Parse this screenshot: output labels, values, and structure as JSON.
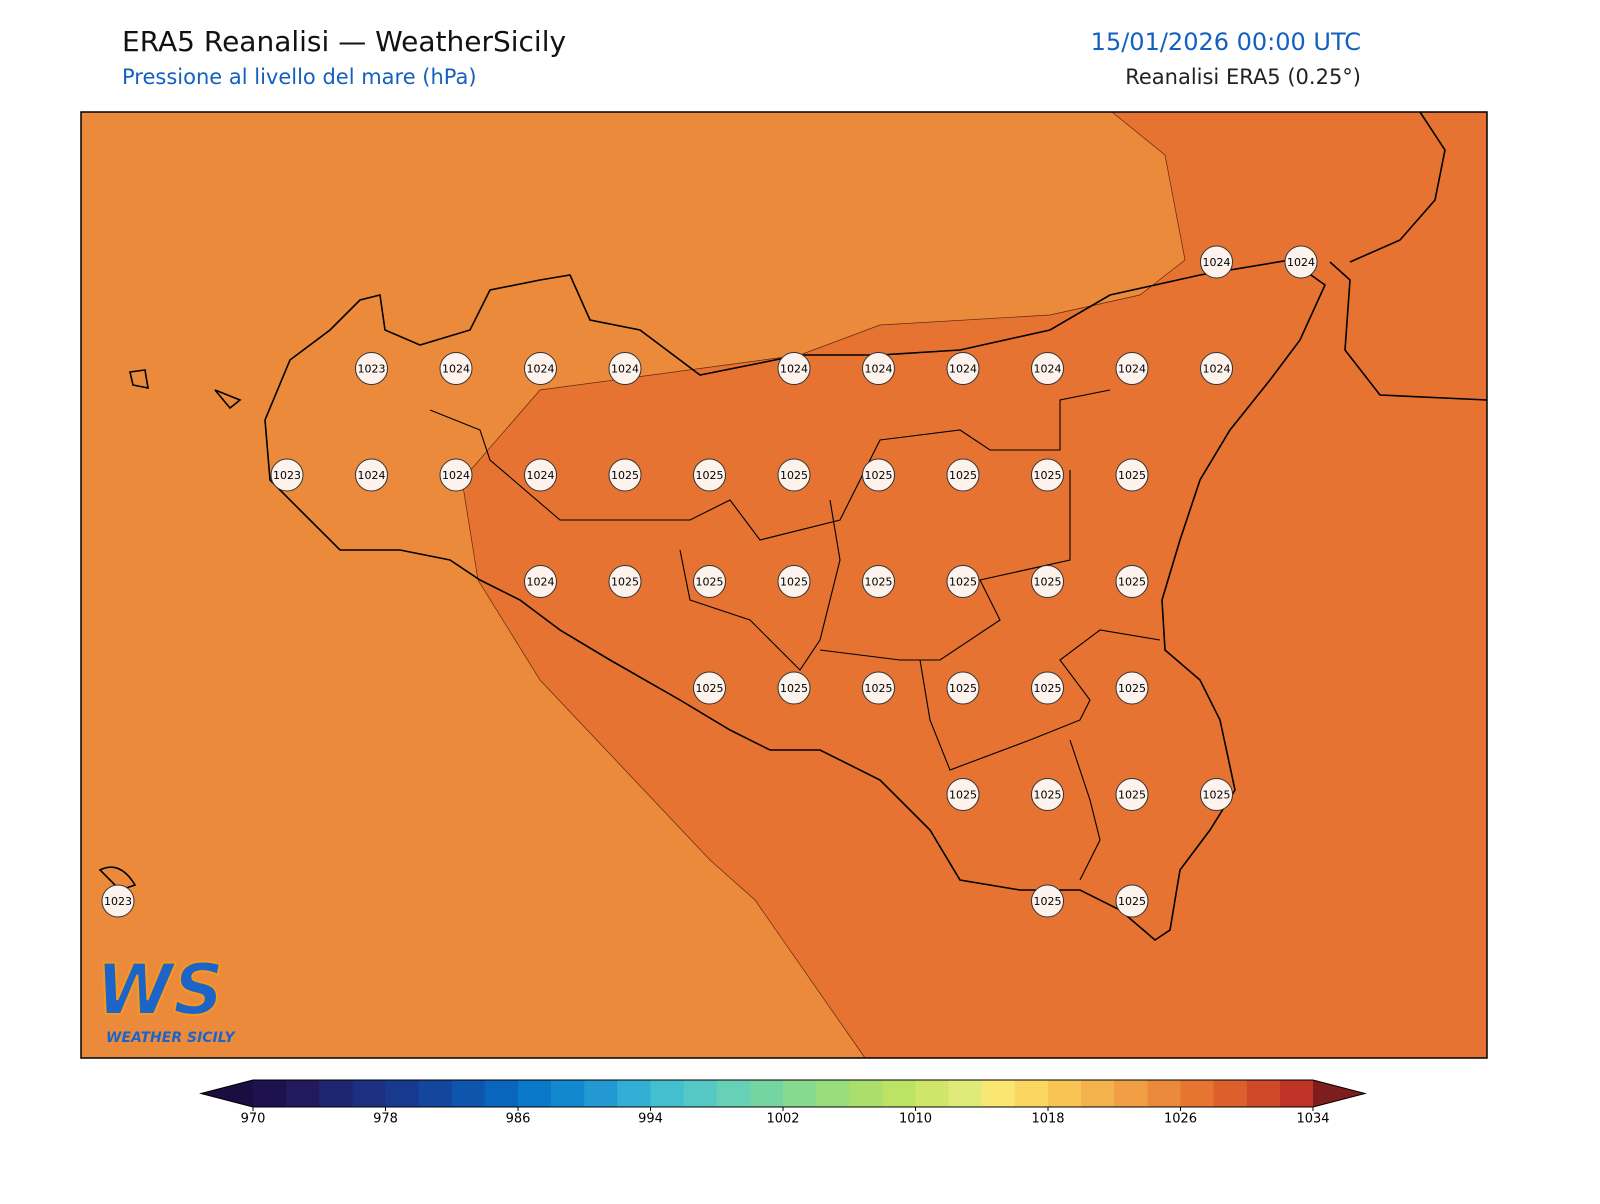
{
  "header": {
    "title": "ERA5 Reanalisi — WeatherSicily",
    "subtitle": "Pressione al livello del mare (hPa)",
    "datetime": "15/01/2026 00:00 UTC",
    "source": "Reanalisi ERA5 (0.25°)"
  },
  "map": {
    "labels": [
      [
        1024,
        1024
      ],
      [
        1023,
        1024,
        1024,
        1024,
        1024,
        1024,
        1024,
        1024,
        1024,
        1024
      ],
      [
        1023,
        1024,
        1024,
        1024,
        1025,
        1025,
        1025,
        1025,
        1025,
        1025,
        1025
      ],
      [
        1024,
        1025,
        1025,
        1025,
        1025,
        1025,
        1025,
        1025
      ],
      [
        1025,
        1025,
        1025,
        1025,
        1025,
        1025
      ],
      [
        1025,
        1025,
        1025,
        1025
      ],
      [
        1023,
        1025,
        1025
      ]
    ]
  },
  "colorbar": {
    "lim": [
      970,
      1034
    ],
    "ticks": [
      970,
      978,
      986,
      994,
      1002,
      1010,
      1018,
      1026,
      1034
    ],
    "under_color": "#1a0d3f",
    "over_color": "#7e1d1d",
    "colors": [
      "#1e1150",
      "#231a5e",
      "#1f2570",
      "#1c2f80",
      "#183a8e",
      "#13479e",
      "#0e56ad",
      "#0a66bc",
      "#0b78c8",
      "#1289cf",
      "#2299d3",
      "#33aed4",
      "#43bfd0",
      "#55c8c5",
      "#66d1b6",
      "#74d5a2",
      "#86d98e",
      "#98dc7c",
      "#aadf6e",
      "#bde365",
      "#cfe66b",
      "#dfea78",
      "#fae673",
      "#fbd660",
      "#f8c454",
      "#f4b24c",
      "#f09f44",
      "#eb8a3c",
      "#e67532",
      "#dc5f2c",
      "#d04a2a",
      "#c03428"
    ]
  },
  "logo": {
    "mark": "WS",
    "name": "WEATHER SICILY"
  }
}
